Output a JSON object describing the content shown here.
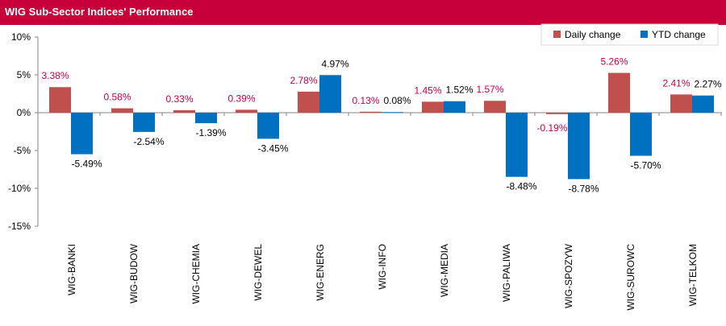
{
  "header": {
    "title": "WIG Sub-Sector Indices' Performance"
  },
  "colors": {
    "header": "#c8003a",
    "daily": "#c0504d",
    "ytd": "#0070c0",
    "daily_label": "#c0004e",
    "ytd_label": "#000000"
  },
  "chart_data": {
    "type": "bar",
    "categories": [
      "WIG-BANKI",
      "WIG-BUDOW",
      "WIG-CHEMIA",
      "WIG-DEWEL",
      "WIG-ENERG",
      "WIG-INFO",
      "WIG-MEDIA",
      "WIG-PALIWA",
      "WIG-SPOZYW",
      "WIG-SUROWC",
      "WIG-TELKOM"
    ],
    "series": [
      {
        "name": "Daily change",
        "values": [
          3.38,
          0.58,
          0.33,
          0.39,
          2.78,
          0.13,
          1.45,
          1.57,
          -0.19,
          5.26,
          2.41
        ],
        "labels": [
          "3.38%",
          "0.58%",
          "0.33%",
          "0.39%",
          "2.78%",
          "0.13%",
          "1.45%",
          "1.57%",
          "-0.19%",
          "5.26%",
          "2.41%"
        ]
      },
      {
        "name": "YTD change",
        "values": [
          -5.49,
          -2.54,
          -1.39,
          -3.45,
          4.97,
          0.08,
          1.52,
          -8.48,
          -8.78,
          -5.7,
          2.27
        ],
        "labels": [
          "-5.49%",
          "-2.54%",
          "-1.39%",
          "-3.45%",
          "4.97%",
          "0.08%",
          "1.52%",
          "-8.48%",
          "-8.78%",
          "-5.70%",
          "2.27%"
        ]
      }
    ],
    "yticks": [
      10,
      5,
      0,
      -5,
      -10,
      -15
    ],
    "ytick_labels": [
      "10%",
      "5%",
      "0%",
      "-5%",
      "-10%",
      "-15%"
    ],
    "ylim": [
      -15,
      10
    ],
    "grid": false,
    "legend": "top-right"
  }
}
